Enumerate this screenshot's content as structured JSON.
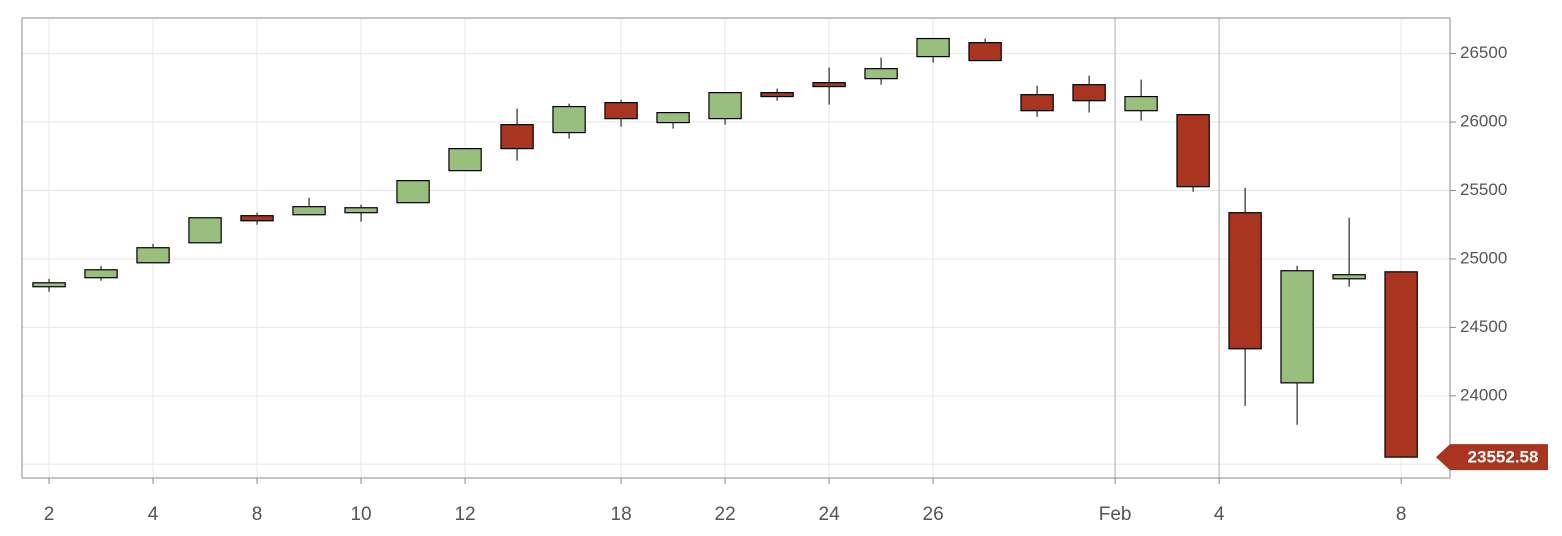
{
  "chart_data": {
    "type": "candlestick",
    "xlim": [
      -0.52,
      26.94
    ],
    "xticks": [
      {
        "value": 0,
        "label": "2"
      },
      {
        "value": 2,
        "label": "4"
      },
      {
        "value": 4,
        "label": "8"
      },
      {
        "value": 6,
        "label": "10"
      },
      {
        "value": 8,
        "label": "12"
      },
      {
        "value": 11,
        "label": "18"
      },
      {
        "value": 13,
        "label": "22"
      },
      {
        "value": 15,
        "label": "24"
      },
      {
        "value": 17,
        "label": "26"
      },
      {
        "value": 20.5,
        "label": "Feb"
      },
      {
        "value": 22.5,
        "label": "4"
      },
      {
        "value": 26,
        "label": "8"
      }
    ],
    "ylim": [
      23400,
      26760
    ],
    "yticks": [
      {
        "value": 23500,
        "label": null
      },
      24000,
      24500,
      25000,
      25500,
      26000,
      26500
    ],
    "grid": true,
    "up_color": "#99bf7f",
    "down_color": "#a93520",
    "open": [
      24797,
      24863,
      24972,
      25118,
      25316,
      25323,
      25338,
      25411,
      25645,
      25981,
      25923,
      26142,
      25996,
      26025,
      26215,
      26288,
      26317,
      26478,
      26580,
      26200,
      26273,
      26083,
      26054,
      25338,
      24095,
      24855,
      24906
    ],
    "high": [
      24855,
      24950,
      25111,
      25301,
      25338,
      25447,
      25396,
      25572,
      25806,
      26098,
      26135,
      26164,
      26069,
      26215,
      26244,
      26398,
      26471,
      26610,
      26610,
      26266,
      26339,
      26310,
      26054,
      25520,
      24950,
      25301,
      24906
    ],
    "low": [
      24760,
      24841,
      24972,
      25118,
      25250,
      25323,
      25272,
      25411,
      25645,
      25718,
      25879,
      25966,
      25952,
      25981,
      26156,
      26127,
      26273,
      26434,
      26449,
      26039,
      26069,
      26010,
      25491,
      23927,
      23788,
      24797,
      23552.58
    ],
    "close": [
      24826,
      24921,
      25082,
      25301,
      25279,
      25382,
      25374,
      25572,
      25806,
      25806,
      26113,
      26025,
      26069,
      26215,
      26186,
      26259,
      26390,
      26610,
      26449,
      26083,
      26156,
      26186,
      25528,
      24344,
      24914,
      24885,
      23552.58
    ],
    "last_value": 23552.58
  }
}
